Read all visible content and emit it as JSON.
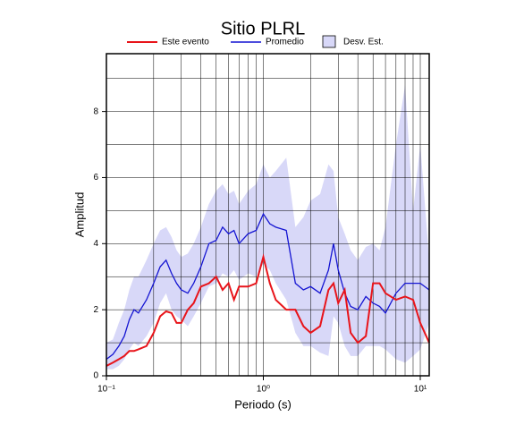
{
  "chart_data": {
    "type": "line",
    "title": "Sitio PLRL",
    "xlabel": "Periodo (s)",
    "ylabel": "Amplitud",
    "xscale": "log",
    "grid": true,
    "xlim": [
      0.1,
      11.4
    ],
    "ylim": [
      0,
      9.75
    ],
    "xticks": [
      {
        "value": 0.1,
        "label": "10⁻¹"
      },
      {
        "value": 1,
        "label": "10⁰"
      },
      {
        "value": 10,
        "label": "10¹"
      }
    ],
    "xgrid": [
      0.2,
      0.3,
      0.4,
      0.5,
      0.6,
      0.7,
      0.8,
      0.9,
      2,
      3,
      4,
      5,
      6,
      7,
      8,
      9
    ],
    "yticks": [
      0,
      2,
      4,
      6,
      8
    ],
    "ygrid": [
      1,
      2,
      3,
      4,
      5,
      6,
      7,
      8,
      9
    ],
    "x": [
      0.1,
      0.11,
      0.12,
      0.13,
      0.14,
      0.15,
      0.16,
      0.18,
      0.2,
      0.22,
      0.24,
      0.26,
      0.28,
      0.3,
      0.33,
      0.36,
      0.4,
      0.45,
      0.5,
      0.55,
      0.6,
      0.65,
      0.7,
      0.8,
      0.9,
      1.0,
      1.1,
      1.2,
      1.4,
      1.6,
      1.8,
      2.0,
      2.3,
      2.6,
      2.8,
      3.0,
      3.3,
      3.6,
      4.0,
      4.5,
      5.0,
      5.5,
      6.0,
      7.0,
      8.0,
      9.0,
      10,
      11.4
    ],
    "series": [
      {
        "name": "Este evento",
        "color": "#e8141a",
        "values": [
          0.3,
          0.4,
          0.5,
          0.6,
          0.75,
          0.75,
          0.8,
          0.9,
          1.3,
          1.8,
          1.95,
          1.9,
          1.6,
          1.6,
          2.0,
          2.2,
          2.7,
          2.8,
          3.0,
          2.6,
          2.8,
          2.3,
          2.7,
          2.7,
          2.8,
          3.6,
          2.8,
          2.3,
          2.0,
          2.0,
          1.5,
          1.3,
          1.5,
          2.6,
          2.8,
          2.2,
          2.6,
          1.3,
          1.0,
          1.2,
          2.8,
          2.8,
          2.5,
          2.3,
          2.4,
          2.3,
          1.6,
          1.0
        ]
      },
      {
        "name": "Promedio",
        "color": "#1414d2",
        "values": [
          0.5,
          0.65,
          0.9,
          1.2,
          1.7,
          2.0,
          1.9,
          2.3,
          2.8,
          3.3,
          3.5,
          3.1,
          2.8,
          2.6,
          2.5,
          2.8,
          3.3,
          4.0,
          4.1,
          4.5,
          4.3,
          4.4,
          4.0,
          4.3,
          4.4,
          4.9,
          4.6,
          4.5,
          4.4,
          2.8,
          2.6,
          2.7,
          2.5,
          3.2,
          4.0,
          3.2,
          2.5,
          2.1,
          2.0,
          2.4,
          2.2,
          2.1,
          1.9,
          2.5,
          2.8,
          2.8,
          2.8,
          2.6
        ]
      },
      {
        "name": "Desv. Est.",
        "color": "#d8d8f8",
        "upper": [
          1.0,
          1.1,
          1.6,
          2.0,
          2.6,
          3.0,
          3.0,
          3.5,
          4.0,
          4.4,
          4.5,
          4.2,
          3.8,
          3.6,
          3.7,
          4.0,
          4.5,
          5.2,
          5.6,
          5.8,
          5.5,
          5.6,
          5.2,
          5.6,
          5.8,
          6.4,
          6.0,
          6.2,
          6.6,
          4.5,
          4.8,
          5.3,
          5.5,
          6.4,
          6.2,
          4.8,
          4.3,
          3.8,
          3.5,
          3.9,
          4.0,
          3.8,
          4.5,
          7.0,
          8.8,
          5.0,
          7.0,
          3.5
        ],
        "lower": [
          0.2,
          0.2,
          0.3,
          0.5,
          0.8,
          1.0,
          0.9,
          1.2,
          1.6,
          2.2,
          2.5,
          2.0,
          1.8,
          1.7,
          1.5,
          1.8,
          2.2,
          2.7,
          2.8,
          3.1,
          3.0,
          3.2,
          2.9,
          3.1,
          3.0,
          3.4,
          3.2,
          2.8,
          2.3,
          1.3,
          0.9,
          0.9,
          0.7,
          0.6,
          1.8,
          1.6,
          0.9,
          0.6,
          0.6,
          0.9,
          0.9,
          0.9,
          0.8,
          0.5,
          0.4,
          0.6,
          0.8,
          1.6
        ]
      }
    ]
  }
}
